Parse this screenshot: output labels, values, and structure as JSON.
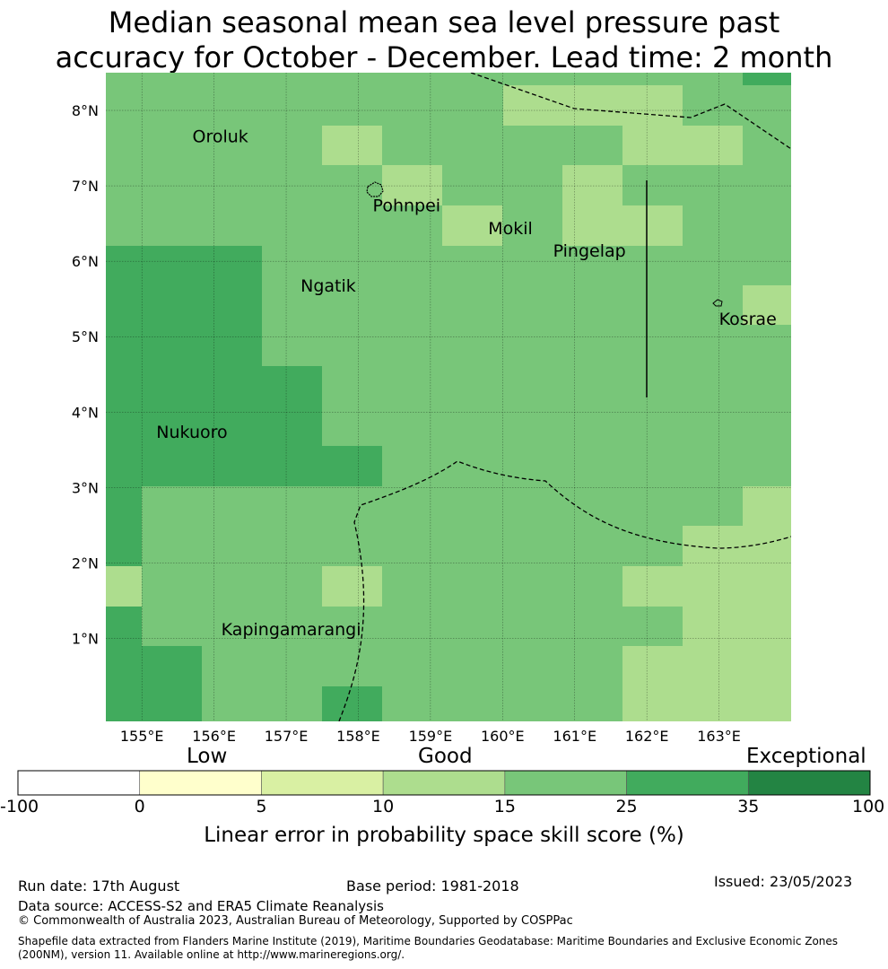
{
  "title_line1": "Median seasonal mean sea level pressure past",
  "title_line2": "accuracy for October - December. Lead time: 2 month",
  "map": {
    "lon_range": [
      154.5,
      164.0
    ],
    "lat_range": [
      -0.1,
      8.5
    ],
    "lon_ticks": [
      "155°E",
      "156°E",
      "157°E",
      "158°E",
      "159°E",
      "160°E",
      "161°E",
      "162°E",
      "163°E"
    ],
    "lat_ticks": [
      "1°N",
      "2°N",
      "3°N",
      "4°N",
      "5°N",
      "6°N",
      "7°N",
      "8°N"
    ],
    "places": [
      {
        "name": "Oroluk",
        "lon": 155.7,
        "lat": 7.58
      },
      {
        "name": "Pohnpei",
        "lon": 158.2,
        "lat": 6.66
      },
      {
        "name": "Mokil",
        "lon": 159.8,
        "lat": 6.36
      },
      {
        "name": "Pingelap",
        "lon": 160.7,
        "lat": 6.06
      },
      {
        "name": "Ngatik",
        "lon": 157.2,
        "lat": 5.6
      },
      {
        "name": "Kosrae",
        "lon": 163.0,
        "lat": 5.16
      },
      {
        "name": "Nukuoro",
        "lon": 155.2,
        "lat": 3.66
      },
      {
        "name": "Kapingamarangi",
        "lon": 156.1,
        "lat": 1.04
      }
    ]
  },
  "colorbar": {
    "categories": [
      "Low",
      "Good",
      "Exceptional"
    ],
    "ticks": [
      "-100",
      "0",
      "5",
      "10",
      "15",
      "25",
      "35",
      "100"
    ],
    "colors": [
      "#ffffff",
      "#ffffcc",
      "#d9f0a3",
      "#addd8e",
      "#78c679",
      "#41ab5d",
      "#238443"
    ],
    "label": "Linear error in probability space skill score (%)"
  },
  "footer": {
    "run_date": "Run date: 17th August",
    "base_period": "Base period: 1981-2018",
    "issued": "Issued: 23/05/2023",
    "data_source": "Data source: ACCESS-S2 and ERA5 Climate Reanalysis",
    "copyright": "© Commonwealth of Australia 2023, Australian Bureau of Meteorology, Supported by COSPPac",
    "shapefile": "Shapefile data extracted from Flanders Marine Institute (2019), Maritime Boundaries Geodatabase: Maritime Boundaries and Exclusive Economic Zones (200NM), version 11. Available online at http://www.marineregions.org/."
  }
}
